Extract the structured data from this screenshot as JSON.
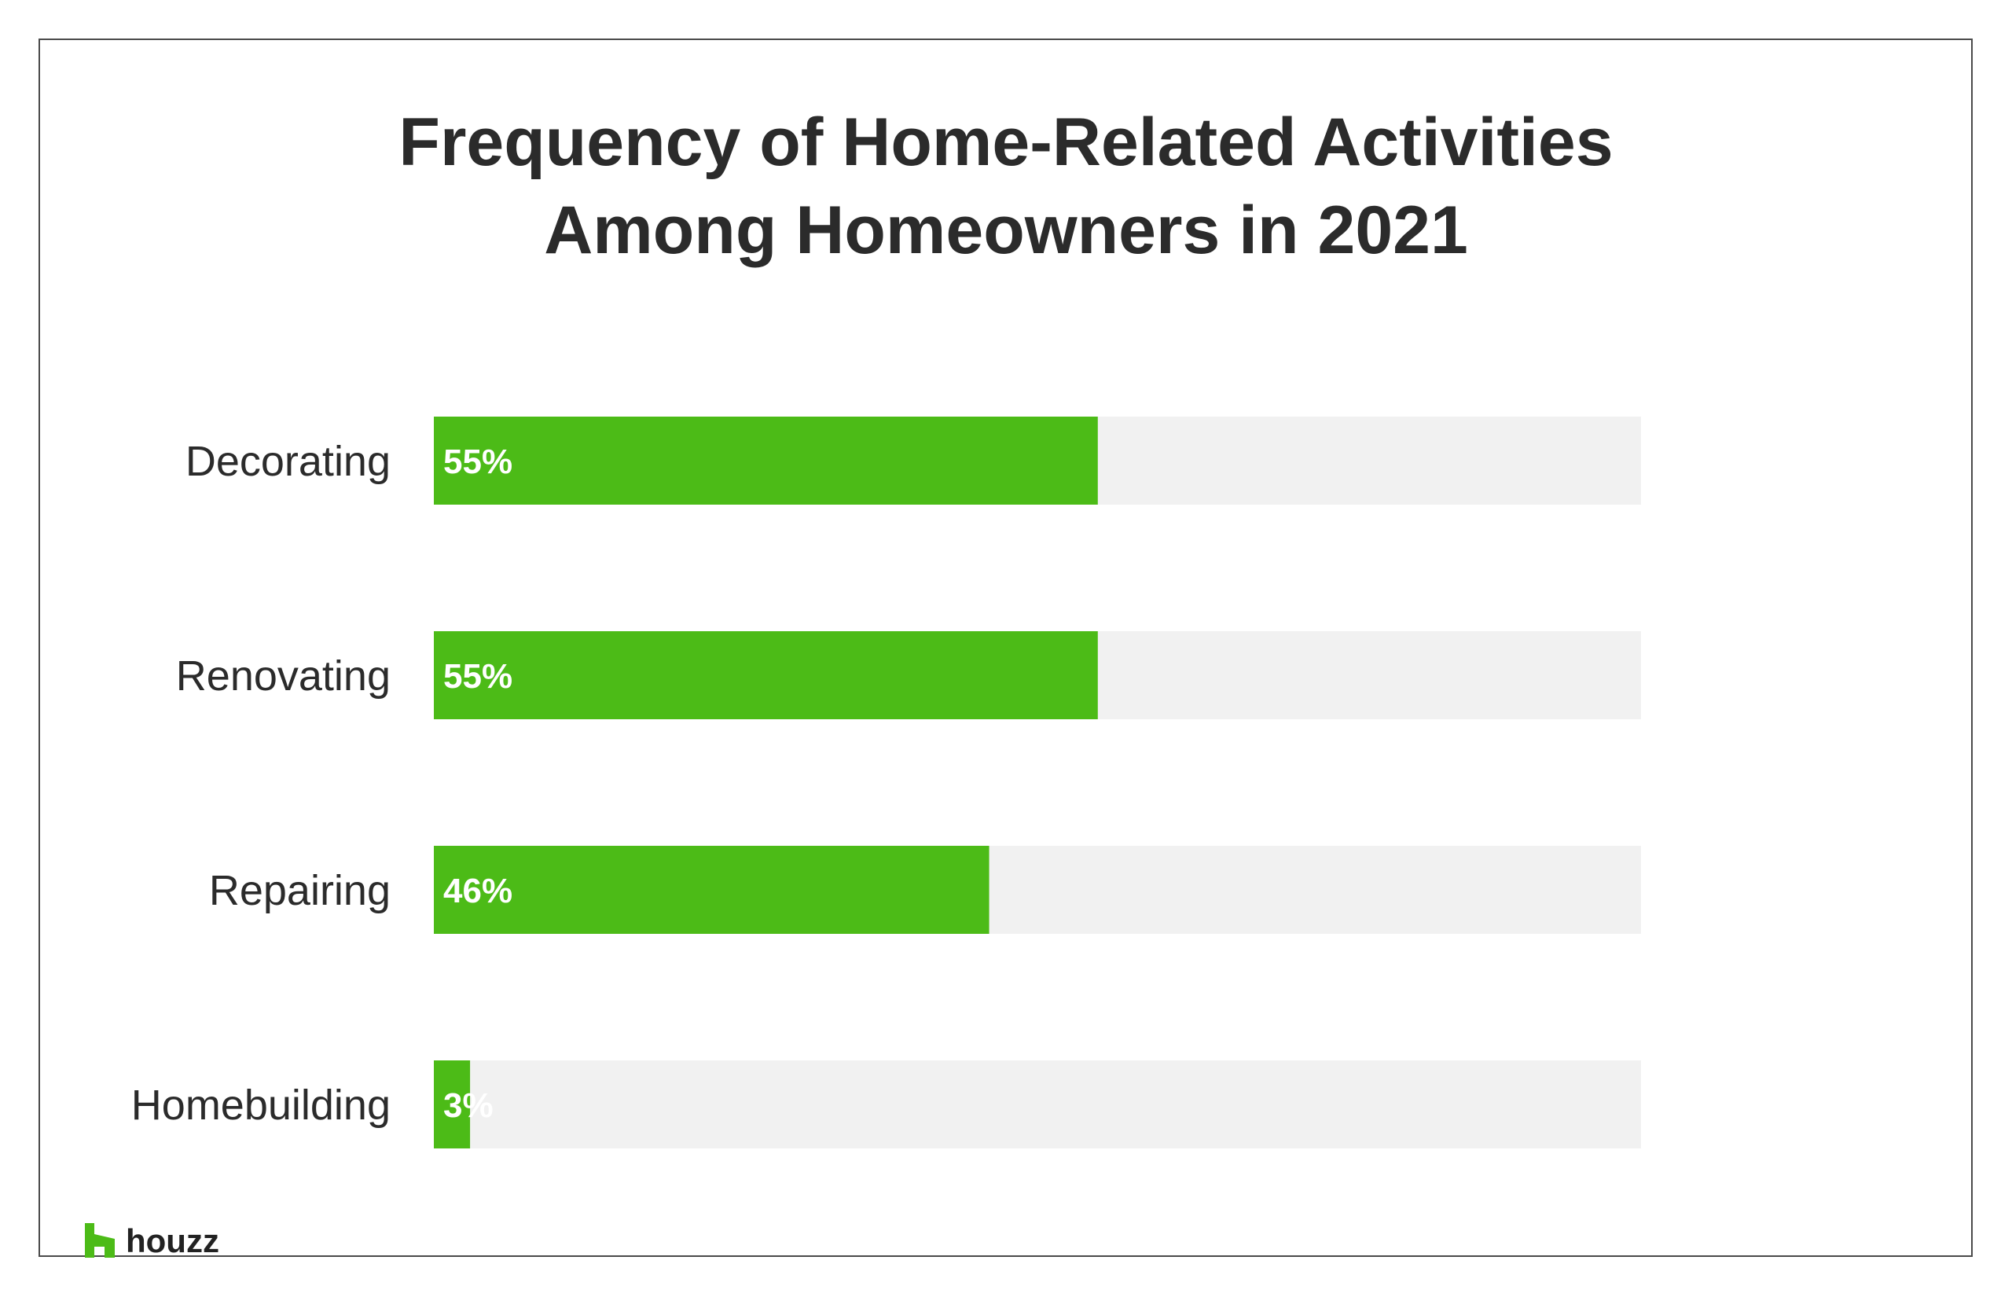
{
  "colors": {
    "bar_fill": "#4cbb17",
    "bar_track": "#f1f1f1",
    "text": "#2b2b2b",
    "value_text": "#ffffff",
    "brand": "#4cbb17"
  },
  "chart_data": {
    "type": "bar",
    "orientation": "horizontal",
    "title": "Frequency of Home-Related Activities Among Homeowners in 2021",
    "title_lines": [
      "Frequency of Home-Related Activities",
      "Among Homeowners in 2021"
    ],
    "categories": [
      "Decorating",
      "Renovating",
      "Repairing",
      "Homebuilding"
    ],
    "values": [
      55,
      55,
      46,
      3
    ],
    "value_labels": [
      "55%",
      "55%",
      "46%",
      "3%"
    ],
    "unit": "%",
    "xlim": [
      0,
      100
    ],
    "grid": false,
    "legend": "none"
  },
  "brand": {
    "logo_text": "houzz",
    "logo_icon": "houzz-h-icon"
  }
}
